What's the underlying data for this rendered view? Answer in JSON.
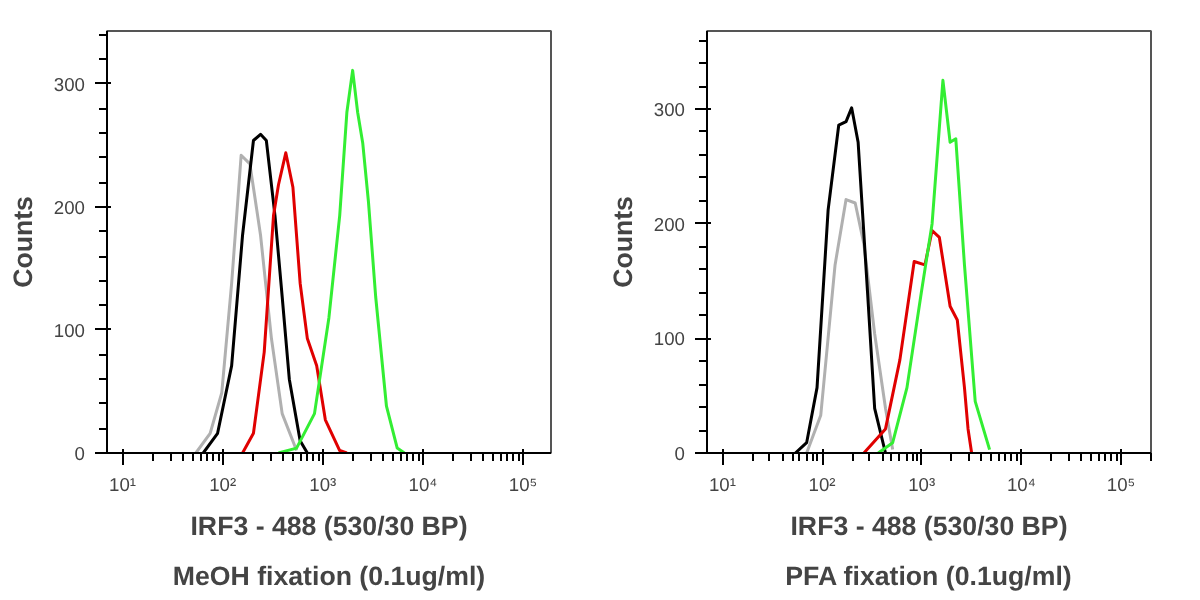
{
  "chart_data": [
    {
      "type": "line",
      "xlabel": "IRF3 - 488 (530/30 BP)",
      "ylabel": "Counts",
      "annotations": [
        "MeOH fixation (0.1ug/ml)"
      ],
      "log": "x",
      "grid": false,
      "marker": "none",
      "line_style": "solid",
      "xlim": [
        7,
        190000
      ],
      "ylim": [
        0,
        343
      ],
      "xticks": [
        {
          "value": 10,
          "label": "10¹"
        },
        {
          "value": 100,
          "label": "10²"
        },
        {
          "value": 1000,
          "label": "10³"
        },
        {
          "value": 10000,
          "label": "10⁴"
        },
        {
          "value": 100000,
          "label": "10⁵"
        }
      ],
      "yticks": [
        0,
        100,
        200,
        300
      ],
      "series": [
        {
          "color": "#b0b0b0",
          "x": [
            54,
            75,
            98,
            123,
            153,
            187,
            239,
            307,
            393,
            547
          ],
          "values": [
            0,
            16,
            49,
            138,
            242,
            235,
            177,
            93,
            32,
            2
          ]
        },
        {
          "color": "#000000",
          "x": [
            64,
            89,
            123,
            158,
            203,
            239,
            273,
            333,
            393,
            463,
            594,
            701
          ],
          "values": [
            0,
            16,
            71,
            177,
            254,
            259,
            254,
            193,
            127,
            60,
            10,
            0
          ]
        },
        {
          "color": "#e00000",
          "x": [
            158,
            203,
            260,
            322,
            361,
            427,
            503,
            594,
            701,
            869,
            1060,
            1475,
            1740
          ],
          "values": [
            0,
            16,
            82,
            193,
            218,
            244,
            216,
            138,
            93,
            71,
            27,
            2,
            0
          ]
        },
        {
          "color": "#33ee33",
          "x": [
            361,
            547,
            826,
            1151,
            1475,
            1740,
            1986,
            2228,
            2504,
            2858,
            3373,
            4323,
            5535,
            6530
          ],
          "values": [
            0,
            4,
            32,
            110,
            193,
            277,
            311,
            277,
            252,
            204,
            127,
            38,
            4,
            0
          ]
        }
      ]
    },
    {
      "type": "line",
      "xlabel": "IRF3 - 488 (530/30 BP)",
      "ylabel": "Counts",
      "annotations": [
        "PFA fixation (0.1ug/ml)"
      ],
      "log": "x",
      "grid": false,
      "marker": "none",
      "line_style": "solid",
      "xlim": [
        7,
        200000
      ],
      "ylim": [
        0,
        368
      ],
      "xticks": [
        {
          "value": 10,
          "label": "10¹"
        },
        {
          "value": 100,
          "label": "10²"
        },
        {
          "value": 1000,
          "label": "10³"
        },
        {
          "value": 10000,
          "label": "10⁴"
        },
        {
          "value": 100000,
          "label": "10⁵"
        }
      ],
      "yticks": [
        0,
        100,
        200,
        300
      ],
      "series": [
        {
          "color": "#b0b0b0",
          "x": [
            70,
            97,
            135,
            174,
            215,
            263,
            337,
            433,
            511
          ],
          "values": [
            0,
            33,
            164,
            221,
            218,
            182,
            104,
            39,
            3
          ]
        },
        {
          "color": "#000000",
          "x": [
            54,
            70,
            89,
            115,
            147,
            174,
            198,
            230,
            286,
            337,
            433
          ],
          "values": [
            0,
            9,
            57,
            212,
            286,
            289,
            301,
            271,
            140,
            39,
            0
          ]
        },
        {
          "color": "#e00000",
          "x": [
            263,
            433,
            603,
            840,
            1077,
            1271,
            1503,
            1927,
            2275,
            2685,
            2917,
            3169
          ],
          "values": [
            0,
            21,
            81,
            167,
            164,
            194,
            188,
            128,
            116,
            57,
            21,
            0
          ]
        },
        {
          "color": "#33ee33",
          "x": [
            366,
            511,
            711,
            991,
            1271,
            1632,
            1927,
            2198,
            2685,
            3442,
            4798
          ],
          "values": [
            0,
            9,
            57,
            140,
            200,
            325,
            271,
            274,
            164,
            45,
            3
          ]
        }
      ]
    }
  ]
}
